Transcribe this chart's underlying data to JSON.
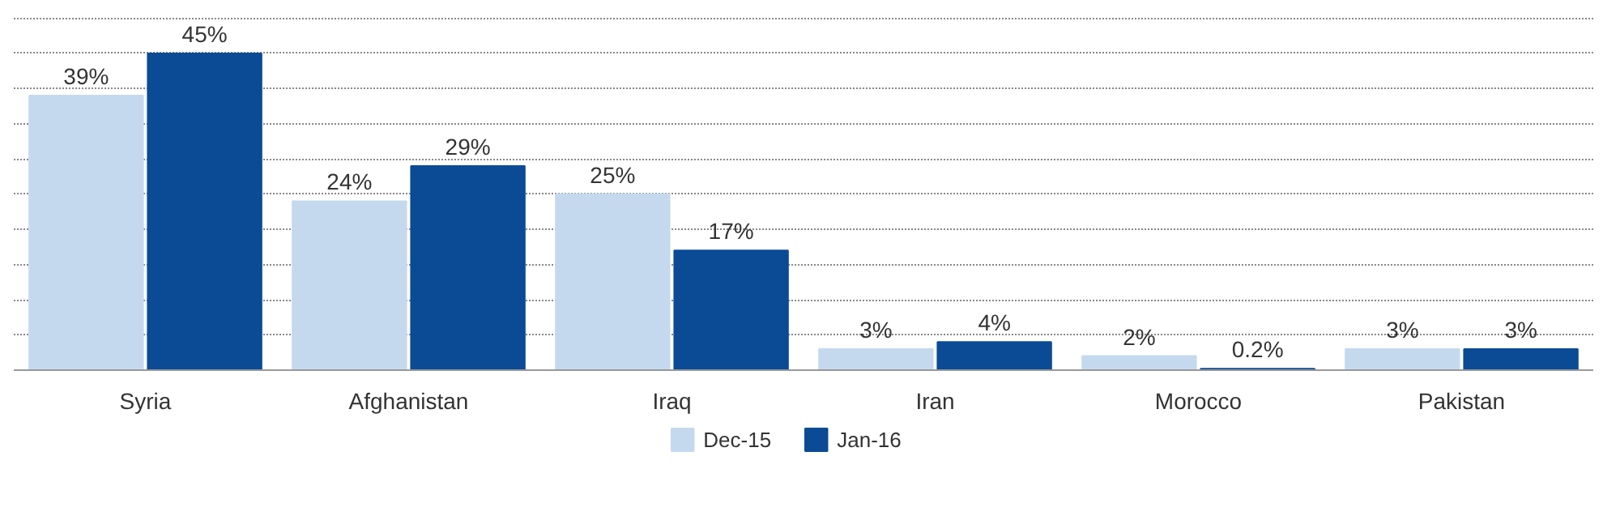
{
  "chart_data": {
    "type": "bar",
    "categories": [
      "Syria",
      "Afghanistan",
      "Iraq",
      "Iran",
      "Morocco",
      "Pakistan"
    ],
    "series": [
      {
        "name": "Dec-15",
        "color": "#c5d9ee",
        "values": [
          39,
          24,
          25,
          3,
          2,
          3
        ],
        "value_labels": [
          "39%",
          "24%",
          "25%",
          "3%",
          "2%",
          "3%"
        ]
      },
      {
        "name": "Jan-16",
        "color": "#0b4b96",
        "values": [
          45,
          29,
          17,
          4,
          0.2,
          3
        ],
        "value_labels": [
          "45%",
          "29%",
          "17%",
          "4%",
          "0.2%",
          "3%"
        ]
      }
    ],
    "grid": "y",
    "legend": "bottom",
    "tick_labels": "x"
  }
}
